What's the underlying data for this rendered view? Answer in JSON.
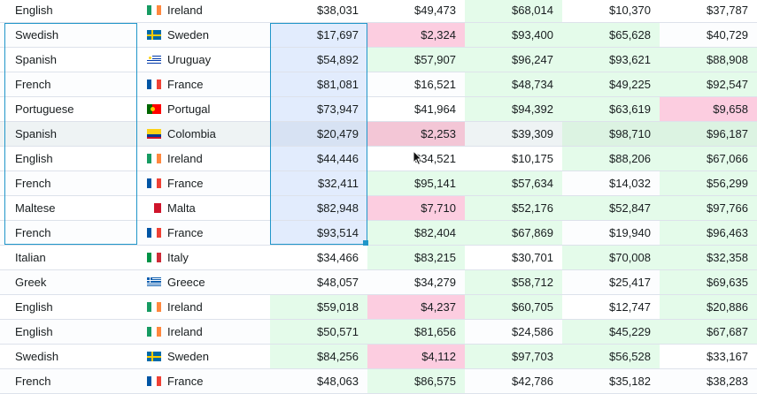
{
  "rows": [
    {
      "language": "English",
      "country": "Ireland",
      "flag": "ie",
      "values": [
        "",
        "$38,031",
        "$49,473",
        "$68,014",
        "$10,370",
        "$37,787"
      ]
    },
    {
      "language": "Swedish",
      "country": "Sweden",
      "flag": "se",
      "values": [
        "",
        "$17,697",
        "$2,324",
        "$93,400",
        "$65,628",
        "$40,729"
      ]
    },
    {
      "language": "Spanish",
      "country": "Uruguay",
      "flag": "uy",
      "values": [
        "",
        "$54,892",
        "$57,907",
        "$96,247",
        "$93,621",
        "$88,908"
      ]
    },
    {
      "language": "French",
      "country": "France",
      "flag": "fr",
      "values": [
        "",
        "$81,081",
        "$16,521",
        "$48,734",
        "$49,225",
        "$92,547"
      ]
    },
    {
      "language": "Portuguese",
      "country": "Portugal",
      "flag": "pt",
      "values": [
        "",
        "$73,947",
        "$41,964",
        "$94,392",
        "$63,619",
        "$9,658"
      ]
    },
    {
      "language": "Spanish",
      "country": "Colombia",
      "flag": "co",
      "values": [
        "",
        "$20,479",
        "$2,253",
        "$39,309",
        "$98,710",
        "$96,187"
      ]
    },
    {
      "language": "English",
      "country": "Ireland",
      "flag": "ie",
      "values": [
        "",
        "$44,446",
        "$34,521",
        "$10,175",
        "$88,206",
        "$67,066"
      ]
    },
    {
      "language": "French",
      "country": "France",
      "flag": "fr",
      "values": [
        "",
        "$32,411",
        "$95,141",
        "$57,634",
        "$14,032",
        "$56,299"
      ]
    },
    {
      "language": "Maltese",
      "country": "Malta",
      "flag": "mt",
      "values": [
        "",
        "$82,948",
        "$7,710",
        "$52,176",
        "$52,847",
        "$97,766"
      ]
    },
    {
      "language": "French",
      "country": "France",
      "flag": "fr",
      "values": [
        "",
        "$93,514",
        "$82,404",
        "$67,869",
        "$19,940",
        "$96,463"
      ]
    },
    {
      "language": "Italian",
      "country": "Italy",
      "flag": "it",
      "values": [
        "",
        "$34,466",
        "$83,215",
        "$30,701",
        "$70,008",
        "$32,358"
      ]
    },
    {
      "language": "Greek",
      "country": "Greece",
      "flag": "gr",
      "values": [
        "",
        "$48,057",
        "$34,279",
        "$58,712",
        "$25,417",
        "$69,635"
      ]
    },
    {
      "language": "English",
      "country": "Ireland",
      "flag": "ie",
      "values": [
        "",
        "$59,018",
        "$4,237",
        "$60,705",
        "$12,747",
        "$20,886"
      ]
    },
    {
      "language": "English",
      "country": "Ireland",
      "flag": "ie",
      "values": [
        "",
        "$50,571",
        "$81,656",
        "$24,586",
        "$45,229",
        "$67,687"
      ]
    },
    {
      "language": "Swedish",
      "country": "Sweden",
      "flag": "se",
      "values": [
        "",
        "$84,256",
        "$4,112",
        "$97,703",
        "$56,528",
        "$33,167"
      ]
    },
    {
      "language": "French",
      "country": "France",
      "flag": "fr",
      "values": [
        "",
        "$48,063",
        "$86,575",
        "$42,786",
        "$35,182",
        "$38,283"
      ]
    }
  ],
  "cell_shading": [
    [
      "",
      "",
      "",
      "green",
      "",
      ""
    ],
    [
      "",
      "range",
      "pink",
      "green",
      "green",
      ""
    ],
    [
      "",
      "range",
      "green",
      "green",
      "green",
      "green"
    ],
    [
      "",
      "range",
      "",
      "green",
      "green",
      "green"
    ],
    [
      "",
      "range",
      "",
      "green",
      "green",
      "pink"
    ],
    [
      "",
      "range",
      "pink",
      "",
      "green",
      "green"
    ],
    [
      "",
      "range",
      "",
      "",
      "green",
      "green"
    ],
    [
      "",
      "range",
      "green",
      "green",
      "",
      "green"
    ],
    [
      "",
      "range",
      "pink",
      "green",
      "green",
      "green"
    ],
    [
      "",
      "range",
      "green",
      "green",
      "",
      "green"
    ],
    [
      "",
      "",
      "green",
      "",
      "green",
      "green"
    ],
    [
      "",
      "",
      "",
      "green",
      "",
      "green"
    ],
    [
      "",
      "green",
      "pink",
      "green",
      "",
      "green"
    ],
    [
      "",
      "green",
      "green",
      "",
      "green",
      "green"
    ],
    [
      "",
      "green",
      "pink",
      "green",
      "green",
      ""
    ],
    [
      "",
      "",
      "green",
      "",
      "",
      ""
    ]
  ],
  "highlighted_row": 5,
  "selected_rows": [
    1,
    9
  ],
  "colors": {
    "green": "#e4fbea",
    "pink": "#fccde0",
    "range": "#e2ecfd",
    "selection": "#2196c9"
  }
}
